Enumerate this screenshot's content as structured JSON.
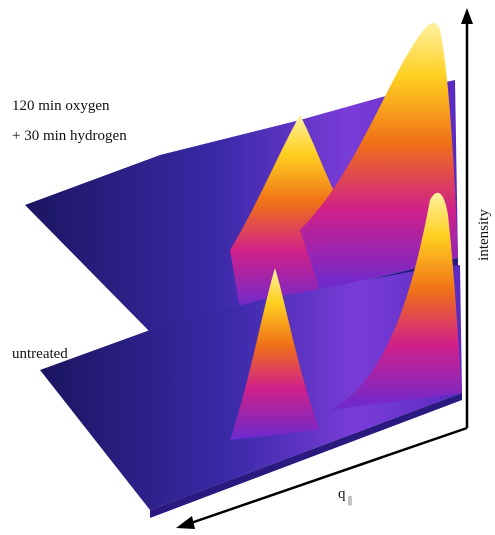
{
  "surfaces": [
    {
      "label": [
        "120 min oxygen",
        "+ 30 min hydrogen"
      ]
    },
    {
      "label": [
        "untreated"
      ]
    }
  ],
  "axes": {
    "x": {
      "label": "q",
      "subscript": "||"
    },
    "y": {
      "label": "intensity"
    }
  }
}
